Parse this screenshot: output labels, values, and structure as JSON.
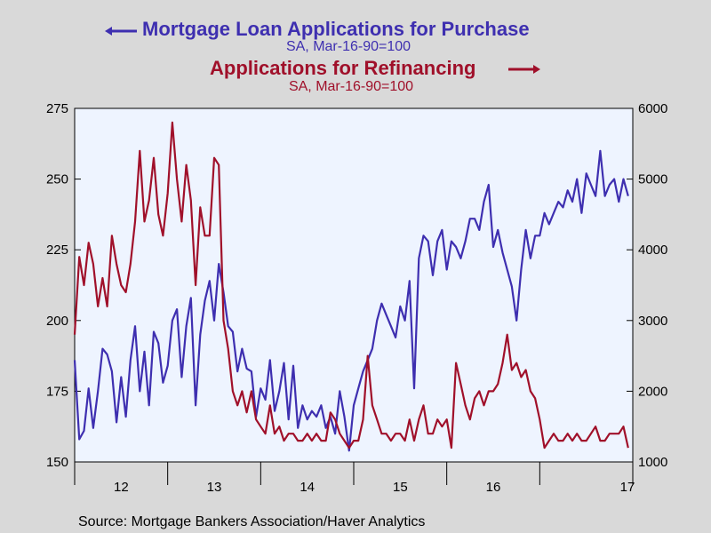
{
  "chart_data": {
    "type": "line",
    "title_left": "Mortgage Loan Applications for Purchase",
    "subtitle_left": "SA, Mar-16-90=100",
    "title_right": "Applications for Refinancing",
    "subtitle_right": "SA, Mar-16-90=100",
    "source": "Source:  Mortgage Bankers Association/Haver Analytics",
    "left_axis": {
      "min": 150,
      "max": 275,
      "ticks": [
        "150",
        "175",
        "200",
        "225",
        "250",
        "275"
      ]
    },
    "right_axis": {
      "min": 1000,
      "max": 6000,
      "ticks": [
        "1000",
        "2000",
        "3000",
        "4000",
        "5000",
        "6000"
      ]
    },
    "x_axis": {
      "min": 2011.0,
      "max": 2017.0,
      "tick_labels": [
        "12",
        "13",
        "14",
        "15",
        "16",
        "17"
      ]
    },
    "colors": {
      "purchase": "#3e2fb0",
      "refinancing": "#a0102a",
      "plot_bg": "#eef4ff",
      "page_bg": "#d9d9d9"
    },
    "series": [
      {
        "name": "Mortgage Loan Applications for Purchase",
        "axis": "left",
        "x": [
          2011.0,
          2011.05,
          2011.1,
          2011.15,
          2011.2,
          2011.25,
          2011.3,
          2011.35,
          2011.4,
          2011.45,
          2011.5,
          2011.55,
          2011.6,
          2011.65,
          2011.7,
          2011.75,
          2011.8,
          2011.85,
          2011.9,
          2011.95,
          2012.0,
          2012.05,
          2012.1,
          2012.15,
          2012.2,
          2012.25,
          2012.3,
          2012.35,
          2012.4,
          2012.45,
          2012.5,
          2012.55,
          2012.6,
          2012.65,
          2012.7,
          2012.75,
          2012.8,
          2012.85,
          2012.9,
          2012.95,
          2013.0,
          2013.05,
          2013.1,
          2013.15,
          2013.2,
          2013.25,
          2013.3,
          2013.35,
          2013.4,
          2013.45,
          2013.5,
          2013.55,
          2013.6,
          2013.65,
          2013.7,
          2013.75,
          2013.8,
          2013.85,
          2013.9,
          2013.95,
          2014.0,
          2014.05,
          2014.1,
          2014.15,
          2014.2,
          2014.25,
          2014.3,
          2014.35,
          2014.4,
          2014.45,
          2014.5,
          2014.55,
          2014.6,
          2014.65,
          2014.7,
          2014.75,
          2014.8,
          2014.85,
          2014.9,
          2014.95,
          2015.0,
          2015.05,
          2015.1,
          2015.15,
          2015.2,
          2015.25,
          2015.3,
          2015.35,
          2015.4,
          2015.45,
          2015.5,
          2015.55,
          2015.6,
          2015.65,
          2015.7,
          2015.75,
          2015.8,
          2015.85,
          2015.9,
          2015.95,
          2016.0,
          2016.05,
          2016.1,
          2016.15,
          2016.2,
          2016.25,
          2016.3,
          2016.35,
          2016.4,
          2016.45,
          2016.5,
          2016.55,
          2016.6,
          2016.65,
          2016.7,
          2016.75,
          2016.8,
          2016.85,
          2016.9,
          2016.95
        ],
        "values": [
          186,
          158,
          161,
          176,
          162,
          175,
          190,
          188,
          182,
          164,
          180,
          166,
          186,
          198,
          175,
          189,
          170,
          196,
          192,
          178,
          184,
          200,
          204,
          180,
          198,
          208,
          170,
          195,
          207,
          214,
          200,
          220,
          210,
          198,
          196,
          182,
          190,
          183,
          182,
          166,
          176,
          172,
          186,
          168,
          175,
          185,
          165,
          184,
          162,
          170,
          165,
          168,
          166,
          170,
          162,
          166,
          160,
          175,
          166,
          154,
          170,
          176,
          182,
          186,
          190,
          200,
          206,
          202,
          198,
          194,
          205,
          200,
          214,
          176,
          222,
          230,
          228,
          216,
          228,
          232,
          218,
          228,
          226,
          222,
          228,
          236,
          236,
          232,
          242,
          248,
          226,
          232,
          224,
          218,
          212,
          200,
          218,
          232,
          222,
          230,
          230,
          238,
          234,
          238,
          242,
          240,
          246,
          242,
          250,
          238,
          252,
          248,
          244,
          260,
          244,
          248,
          250,
          242,
          250,
          244
        ]
      },
      {
        "name": "Applications for Refinancing",
        "axis": "right",
        "x": [
          2011.0,
          2011.05,
          2011.1,
          2011.15,
          2011.2,
          2011.25,
          2011.3,
          2011.35,
          2011.4,
          2011.45,
          2011.5,
          2011.55,
          2011.6,
          2011.65,
          2011.7,
          2011.75,
          2011.8,
          2011.85,
          2011.9,
          2011.95,
          2012.0,
          2012.05,
          2012.1,
          2012.15,
          2012.2,
          2012.25,
          2012.3,
          2012.35,
          2012.4,
          2012.45,
          2012.5,
          2012.55,
          2012.6,
          2012.65,
          2012.7,
          2012.75,
          2012.8,
          2012.85,
          2012.9,
          2012.95,
          2013.0,
          2013.05,
          2013.1,
          2013.15,
          2013.2,
          2013.25,
          2013.3,
          2013.35,
          2013.4,
          2013.45,
          2013.5,
          2013.55,
          2013.6,
          2013.65,
          2013.7,
          2013.75,
          2013.8,
          2013.85,
          2013.9,
          2013.95,
          2014.0,
          2014.05,
          2014.1,
          2014.15,
          2014.2,
          2014.25,
          2014.3,
          2014.35,
          2014.4,
          2014.45,
          2014.5,
          2014.55,
          2014.6,
          2014.65,
          2014.7,
          2014.75,
          2014.8,
          2014.85,
          2014.9,
          2014.95,
          2015.0,
          2015.05,
          2015.1,
          2015.15,
          2015.2,
          2015.25,
          2015.3,
          2015.35,
          2015.4,
          2015.45,
          2015.5,
          2015.55,
          2015.6,
          2015.65,
          2015.7,
          2015.75,
          2015.8,
          2015.85,
          2015.9,
          2015.95,
          2016.0,
          2016.05,
          2016.1,
          2016.15,
          2016.2,
          2016.25,
          2016.3,
          2016.35,
          2016.4,
          2016.45,
          2016.5,
          2016.55,
          2016.6,
          2016.65,
          2016.7,
          2016.75,
          2016.8,
          2016.85,
          2016.9,
          2016.95
        ],
        "values": [
          2800,
          3900,
          3500,
          4100,
          3800,
          3200,
          3600,
          3200,
          4200,
          3800,
          3500,
          3400,
          3800,
          4400,
          5400,
          4400,
          4700,
          5300,
          4500,
          4200,
          4800,
          5800,
          5000,
          4400,
          5200,
          4700,
          3500,
          4600,
          4200,
          4200,
          5300,
          5200,
          3000,
          2600,
          2000,
          1800,
          2000,
          1700,
          2000,
          1600,
          1500,
          1400,
          1800,
          1400,
          1500,
          1300,
          1400,
          1400,
          1300,
          1300,
          1400,
          1300,
          1400,
          1300,
          1300,
          1700,
          1600,
          1400,
          1300,
          1200,
          1300,
          1300,
          1600,
          2500,
          1800,
          1600,
          1400,
          1400,
          1300,
          1400,
          1400,
          1300,
          1600,
          1300,
          1600,
          1800,
          1400,
          1400,
          1600,
          1500,
          1600,
          1200,
          2400,
          2100,
          1800,
          1600,
          1900,
          2000,
          1800,
          2000,
          2000,
          2100,
          2400,
          2800,
          2300,
          2400,
          2200,
          2300,
          2000,
          1900,
          1600,
          1200,
          1300,
          1400,
          1300,
          1300,
          1400,
          1300,
          1400,
          1300,
          1300,
          1400,
          1500,
          1300,
          1300,
          1400,
          1400,
          1400,
          1500,
          1200
        ]
      }
    ]
  }
}
